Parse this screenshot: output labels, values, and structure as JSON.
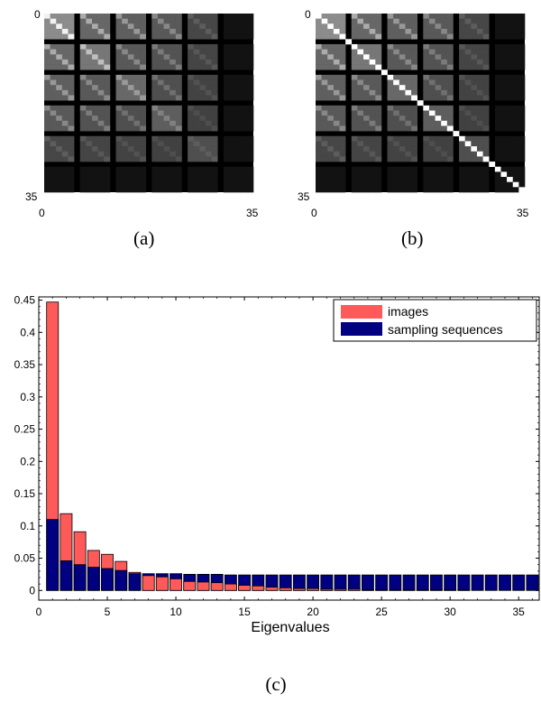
{
  "panels": [
    {
      "caption": "(a)",
      "type": "heatmap",
      "size": 35,
      "tick_labels": {
        "top_left": "0",
        "bottom_left": "35",
        "x_left": "0",
        "x_right": "35"
      },
      "diagonal_highlight": false,
      "pattern": "grid of 6x6 blocks; bright diagonal within blocks; intensity decays with block index"
    },
    {
      "caption": "(b)",
      "type": "heatmap",
      "size": 35,
      "tick_labels": {
        "top_left": "0",
        "bottom_left": "35",
        "x_left": "0",
        "x_right": "35"
      },
      "diagonal_highlight": true,
      "pattern": "same block structure as (a) with a saturated main diagonal"
    }
  ],
  "chart_data": {
    "type": "bar",
    "caption": "(c)",
    "xlabel": "Eigenvalues",
    "ylabel": "",
    "xlim": [
      0,
      36.5
    ],
    "ylim": [
      -0.015,
      0.455
    ],
    "x_ticks": [
      0,
      5,
      10,
      15,
      20,
      25,
      30,
      35
    ],
    "y_ticks": [
      0,
      0.05,
      0.1,
      0.15,
      0.2,
      0.25,
      0.3,
      0.35,
      0.4,
      0.45
    ],
    "legend_position": "top-right",
    "x": [
      1,
      2,
      3,
      4,
      5,
      6,
      7,
      8,
      9,
      10,
      11,
      12,
      13,
      14,
      15,
      16,
      17,
      18,
      19,
      20,
      21,
      22,
      23,
      24,
      25,
      26,
      27,
      28,
      29,
      30,
      31,
      32,
      33,
      34,
      35,
      36
    ],
    "series": [
      {
        "name": "images",
        "color": "#ff5a5a",
        "values": [
          0.447,
          0.119,
          0.091,
          0.062,
          0.056,
          0.045,
          0.028,
          0.023,
          0.021,
          0.018,
          0.014,
          0.013,
          0.012,
          0.01,
          0.008,
          0.007,
          0.005,
          0.004,
          0.003,
          0.003,
          0.002,
          0.002,
          0.002,
          0.001,
          0.001,
          0.001,
          0.001,
          0.001,
          0.001,
          0.001,
          0.001,
          0.0,
          0.0,
          0.0,
          0.0,
          0.0
        ]
      },
      {
        "name": "sampling sequences",
        "color": "#000080",
        "values": [
          0.11,
          0.046,
          0.04,
          0.036,
          0.034,
          0.031,
          0.026,
          0.026,
          0.026,
          0.026,
          0.025,
          0.025,
          0.025,
          0.024,
          0.024,
          0.024,
          0.024,
          0.024,
          0.024,
          0.024,
          0.024,
          0.024,
          0.024,
          0.024,
          0.024,
          0.024,
          0.024,
          0.024,
          0.024,
          0.024,
          0.024,
          0.024,
          0.024,
          0.024,
          0.024,
          0.024
        ]
      }
    ]
  }
}
